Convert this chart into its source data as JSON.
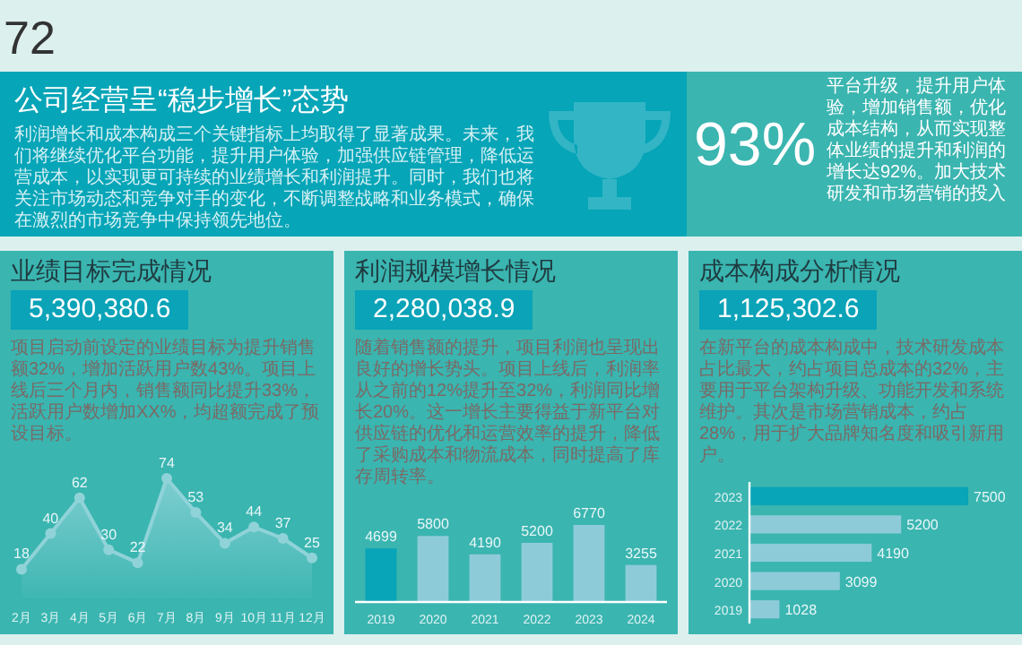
{
  "chart_data": [
    {
      "type": "other",
      "title": "公司经营呈“稳步增长”态势",
      "annotations": [
        "72",
        "利润增长和成本构成三个关键指标上均取得了显著成果。未来，我们将继续优化平台功能，提升用户体验，加强供应链管理，降低运营成本，以实现更可持续的业绩增长和利润提升。同时，我们也将关注市场动态和竞争对手的变化，不断调整战略和业务模式，确保在激烈的市场竞争中保持领先地位。",
        "93%",
        "平台升级，提升用户体验，增加销售额，优化成本结构，从而实现整体业绩的提升和利润的增长达92%。加大技术研发和市场营销的投入"
      ]
    },
    {
      "type": "area",
      "title": "业绩目标完成情况",
      "subtitle": "5,390,380.6",
      "annotations": [
        "项目启动前设定的业绩目标为提升销售额32%，增加活跃用户数43%。项目上线后三个月内，销售额同比提升33%，活跃用户数增加XX%，均超额完成了预设目标。"
      ],
      "categories": [
        "2月",
        "3月",
        "4月",
        "5月",
        "6月",
        "7月",
        "8月",
        "9月",
        "10月",
        "11月",
        "12月"
      ],
      "values": [
        18,
        40,
        62,
        30,
        22,
        74,
        53,
        34,
        44,
        37,
        25
      ],
      "color": "#8fd3d8",
      "marker": "circle",
      "data_labels": true
    },
    {
      "type": "bar",
      "title": "利润规模增长情况",
      "subtitle": "2,280,038.9",
      "annotations": [
        "随着销售额的提升，项目利润也呈现出良好的增长势头。项目上线后，利润率从之前的12%提升至32%，利润同比增长20%。这一增长主要得益于新平台对供应链的优化和运营效率的提升，降低了采购成本和物流成本，同时提高了库存周转率。"
      ],
      "categories": [
        "2019",
        "2020",
        "2021",
        "2022",
        "2023",
        "2024"
      ],
      "values": [
        4699,
        5800,
        4190,
        5200,
        6770,
        3255
      ],
      "colors": [
        "#08a4b7",
        "#8ecbd8",
        "#8ecbd8",
        "#8ecbd8",
        "#8ecbd8",
        "#8ecbd8"
      ],
      "data_labels": true
    },
    {
      "type": "bar",
      "orientation": "horizontal",
      "title": "成本构成分析情况",
      "subtitle": "1,125,302.6",
      "annotations": [
        "在新平台的成本构成中，技术研发成本占比最大，约占项目总成本的32%，主要用于平台架构升级、功能开发和系统维护。其次是市场营销成本，约占28%，用于扩大品牌知名度和吸引新用户。"
      ],
      "categories": [
        "2023",
        "2022",
        "2021",
        "2020",
        "2019"
      ],
      "values": [
        7500,
        5200,
        4190,
        3099,
        1028
      ],
      "colors": [
        "#08a4b7",
        "#8ecbd8",
        "#8ecbd8",
        "#8ecbd8",
        "#8ecbd8"
      ],
      "data_labels": true
    }
  ]
}
